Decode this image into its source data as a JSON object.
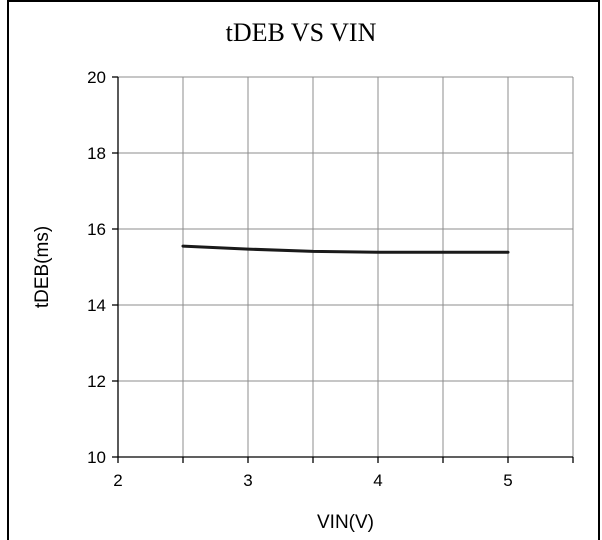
{
  "chart_data": {
    "type": "line",
    "title": "tDEB VS VIN",
    "xlabel": "VIN(V)",
    "ylabel": "tDEB(ms)",
    "xlim": [
      2,
      5.5
    ],
    "ylim": [
      10,
      20
    ],
    "xticks": [
      2,
      3,
      4,
      5
    ],
    "yticks": [
      10,
      12,
      14,
      16,
      18,
      20
    ],
    "grid": true,
    "series": [
      {
        "x": [
          2.5,
          3.0,
          3.5,
          4.0,
          4.5,
          5.0
        ],
        "y": [
          15.55,
          15.47,
          15.41,
          15.39,
          15.39,
          15.39
        ],
        "color": "#1a1a1a"
      }
    ]
  }
}
